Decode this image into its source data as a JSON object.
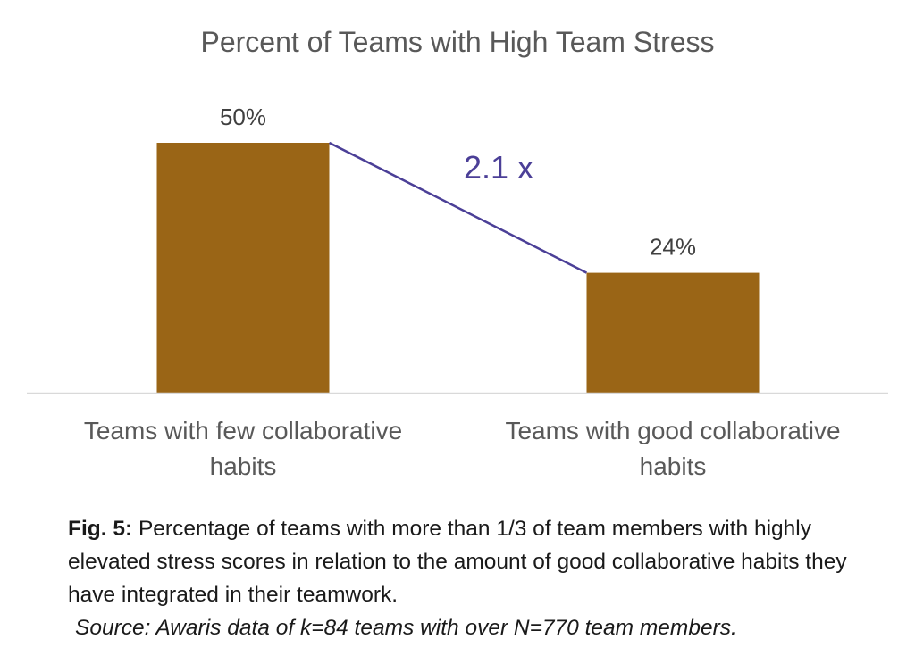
{
  "chart_data": {
    "type": "bar",
    "title": "Percent of Teams with High Team Stress",
    "categories": [
      [
        "Teams with few collaborative",
        "habits"
      ],
      [
        "Teams with good collaborative",
        "habits"
      ]
    ],
    "values": [
      50,
      24
    ],
    "value_labels": [
      "50%",
      "24%"
    ],
    "ylim": [
      0,
      50
    ],
    "grid": false,
    "legend": "none",
    "annotation": "2.1 x",
    "bar_color": "#9a6516",
    "connector_color": "#4b3f97",
    "axis_color": "#d9d9d9"
  },
  "caption": {
    "fig_label": "Fig. 5:",
    "text": " Percentage of teams with more than 1/3 of team members with highly elevated stress scores in relation to the amount of good collaborative habits they have integrated in their teamwork.",
    "source": "Source: Awaris data of k=84 teams with over N=770 team members."
  }
}
